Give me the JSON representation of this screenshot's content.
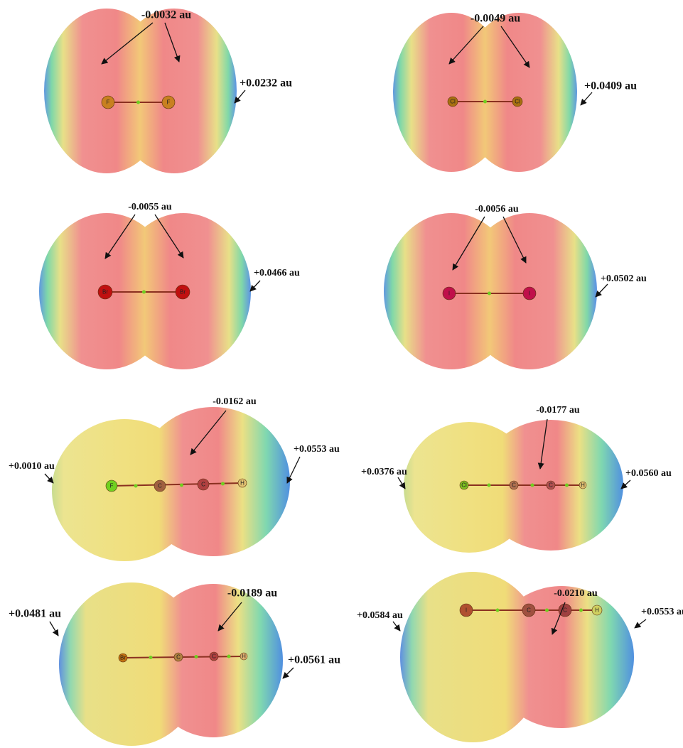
{
  "panels": [
    {
      "labels": [
        "-0.0032 au",
        "+0.0232 au"
      ],
      "atoms": [
        "F",
        "F"
      ]
    },
    {
      "labels": [
        "-0.0049 au",
        "+0.0409 au"
      ],
      "atoms": [
        "Cl",
        "Cl"
      ]
    },
    {
      "labels": [
        "-0.0055 au",
        "+0.0466 au"
      ],
      "atoms": [
        "Br",
        "Br"
      ]
    },
    {
      "labels": [
        "-0.0056 au",
        "+0.0502 au"
      ],
      "atoms": [
        "I",
        "I"
      ]
    },
    {
      "labels": [
        "-0.0162 au",
        "+0.0010 au",
        "+0.0553 au"
      ],
      "atoms": [
        "F",
        "C",
        "C",
        "H"
      ]
    },
    {
      "labels": [
        "-0.0177 au",
        "+0.0376 au",
        "+0.0560 au"
      ],
      "atoms": [
        "Cl",
        "C",
        "C",
        "H"
      ]
    },
    {
      "labels": [
        "-0.0189 au",
        "+0.0481 au",
        "+0.0561 au"
      ],
      "atoms": [
        "Br",
        "C",
        "C",
        "H"
      ]
    },
    {
      "labels": [
        "-0.0210 au",
        "+0.0584 au",
        "+0.0553 au"
      ],
      "atoms": [
        "I",
        "C",
        "C",
        "H"
      ]
    }
  ]
}
